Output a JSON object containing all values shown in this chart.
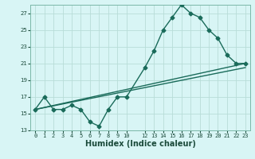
{
  "xlabel": "Humidex (Indice chaleur)",
  "bg_color": "#d8f5f5",
  "grid_color": "#b8ddd8",
  "line_color": "#1a6b5a",
  "xlim": [
    -0.5,
    23.5
  ],
  "ylim": [
    13,
    28
  ],
  "xticks_spaced": [
    0,
    1,
    2,
    3,
    4,
    5,
    6,
    7,
    8,
    9,
    10
  ],
  "xticks_dense": [
    12,
    13,
    14,
    15,
    16,
    17,
    18,
    19,
    20,
    21,
    22,
    23
  ],
  "yticks": [
    13,
    15,
    17,
    19,
    21,
    23,
    25,
    27
  ],
  "line1_x": [
    0,
    1,
    2,
    3,
    4,
    5,
    6,
    7,
    8,
    9,
    10,
    12,
    13,
    14,
    15,
    16,
    17,
    18,
    19,
    20,
    21,
    22,
    23
  ],
  "line1_y": [
    15.5,
    17.0,
    15.5,
    15.5,
    16.0,
    15.5,
    14.0,
    13.5,
    15.5,
    17.0,
    17.0,
    20.5,
    22.5,
    25.0,
    26.5,
    28.0,
    27.0,
    26.5,
    25.0,
    24.0,
    22.0,
    21.0,
    21.0
  ],
  "line2_x": [
    0,
    23
  ],
  "line2_y": [
    15.5,
    21.0
  ],
  "line3_x": [
    0,
    23
  ],
  "line3_y": [
    15.5,
    20.5
  ]
}
